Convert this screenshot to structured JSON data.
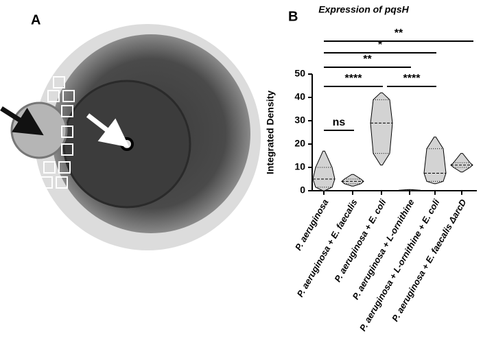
{
  "panels": [
    "A",
    "B"
  ],
  "chart_data": {
    "type": "violin",
    "title": "Expression of pqsH",
    "y_label": "Integrated Density",
    "categories": [
      "P. aeruginosa",
      "P. aeruginosa + E. faecalis",
      "P. aeruginosa + E. coli",
      "P. aeruginosa + L-ornithine",
      "P. aeruginosa + L-ornithine + E. coli",
      "P. aeruginosa + E. faecalis ΔarcD"
    ],
    "values": [
      {
        "min": 0,
        "q1": 1.5,
        "median": 5,
        "q3": 10,
        "max": 17
      },
      {
        "min": 2,
        "q1": 3,
        "median": 4,
        "q3": 5,
        "max": 7
      },
      {
        "min": 11,
        "q1": 16,
        "median": 29,
        "q3": 39,
        "max": 42
      },
      {
        "min": 0,
        "q1": 0.1,
        "median": 0.2,
        "q3": 0.3,
        "max": 0.5
      },
      {
        "min": 3,
        "q1": 4,
        "median": 7.5,
        "q3": 18,
        "max": 23
      },
      {
        "min": 8,
        "q1": 10,
        "median": 11,
        "q3": 12,
        "max": 16
      }
    ],
    "color": "#d3d3d3",
    "ylim": [
      0,
      50
    ],
    "yticks": [
      0,
      10,
      20,
      30,
      40,
      50
    ],
    "annotations": [
      {
        "label": "**",
        "between": [
          0,
          5
        ]
      },
      {
        "label": "*",
        "between": [
          0,
          4
        ]
      },
      {
        "label": "**",
        "between": [
          0,
          3
        ]
      },
      {
        "label": "****",
        "between": [
          0,
          2
        ]
      },
      {
        "label": "****",
        "between": [
          2,
          4
        ]
      },
      {
        "label": "ns",
        "between": [
          0,
          1
        ]
      }
    ]
  }
}
